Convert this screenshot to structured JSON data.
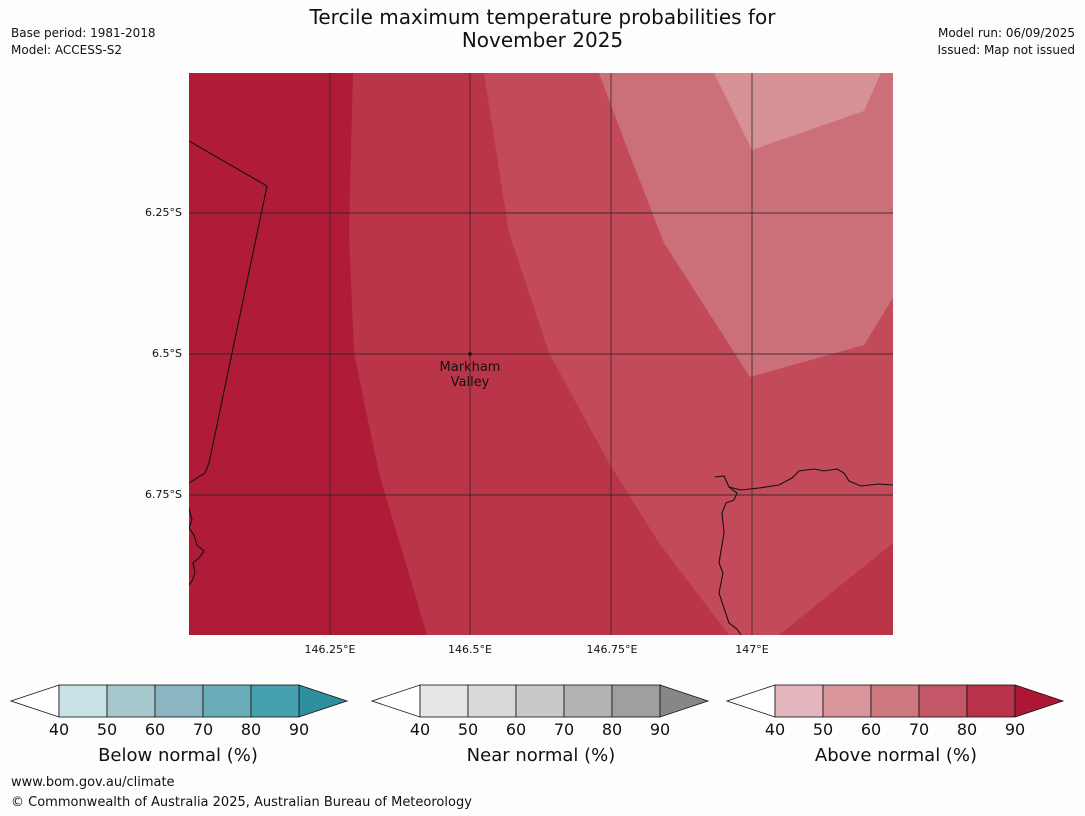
{
  "header": {
    "title_line1": "Tercile maximum temperature probabilities for",
    "title_line2": "November 2025",
    "base_period": "Base period: 1981-2018",
    "model": "Model: ACCESS-S2",
    "model_run": "Model run: 06/09/2025",
    "issued": "Issued: Map not issued"
  },
  "map": {
    "lat_labels": [
      "6.25°S",
      "6.5°S",
      "6.75°S"
    ],
    "lon_labels": [
      "146.25°E",
      "146.5°E",
      "146.75°E",
      "147°E"
    ],
    "place": {
      "name_line1": "Markham",
      "name_line2": "Valley"
    },
    "fill_colors": {
      "above_90": "#b01c38",
      "above_80": "#bb3549",
      "above_70": "#c34b59",
      "above_60": "#cb6f79",
      "above_50": "#d69197"
    }
  },
  "colorbars": [
    {
      "label": "Below normal (%)",
      "ticks": [
        "40",
        "50",
        "60",
        "70",
        "80",
        "90"
      ],
      "colors": [
        "#c9e2e6",
        "#a6c7cc",
        "#8ab6c1",
        "#6aadb9",
        "#46a1ae",
        "#2e8f9e"
      ]
    },
    {
      "label": "Near normal (%)",
      "ticks": [
        "40",
        "50",
        "60",
        "70",
        "80",
        "90"
      ],
      "colors": [
        "#e6e6e6",
        "#d9d9d9",
        "#c9c9c9",
        "#b3b3b3",
        "#9f9f9f",
        "#878787"
      ]
    },
    {
      "label": "Above normal (%)",
      "ticks": [
        "40",
        "50",
        "60",
        "70",
        "80",
        "90"
      ],
      "colors": [
        "#e2b6bc",
        "#d8959c",
        "#ce7880",
        "#c35767",
        "#ba324a",
        "#ad1634"
      ]
    }
  ],
  "footer": {
    "url": "www.bom.gov.au/climate",
    "copyright": "© Commonwealth of Australia 2025, Australian Bureau of Meteorology"
  }
}
